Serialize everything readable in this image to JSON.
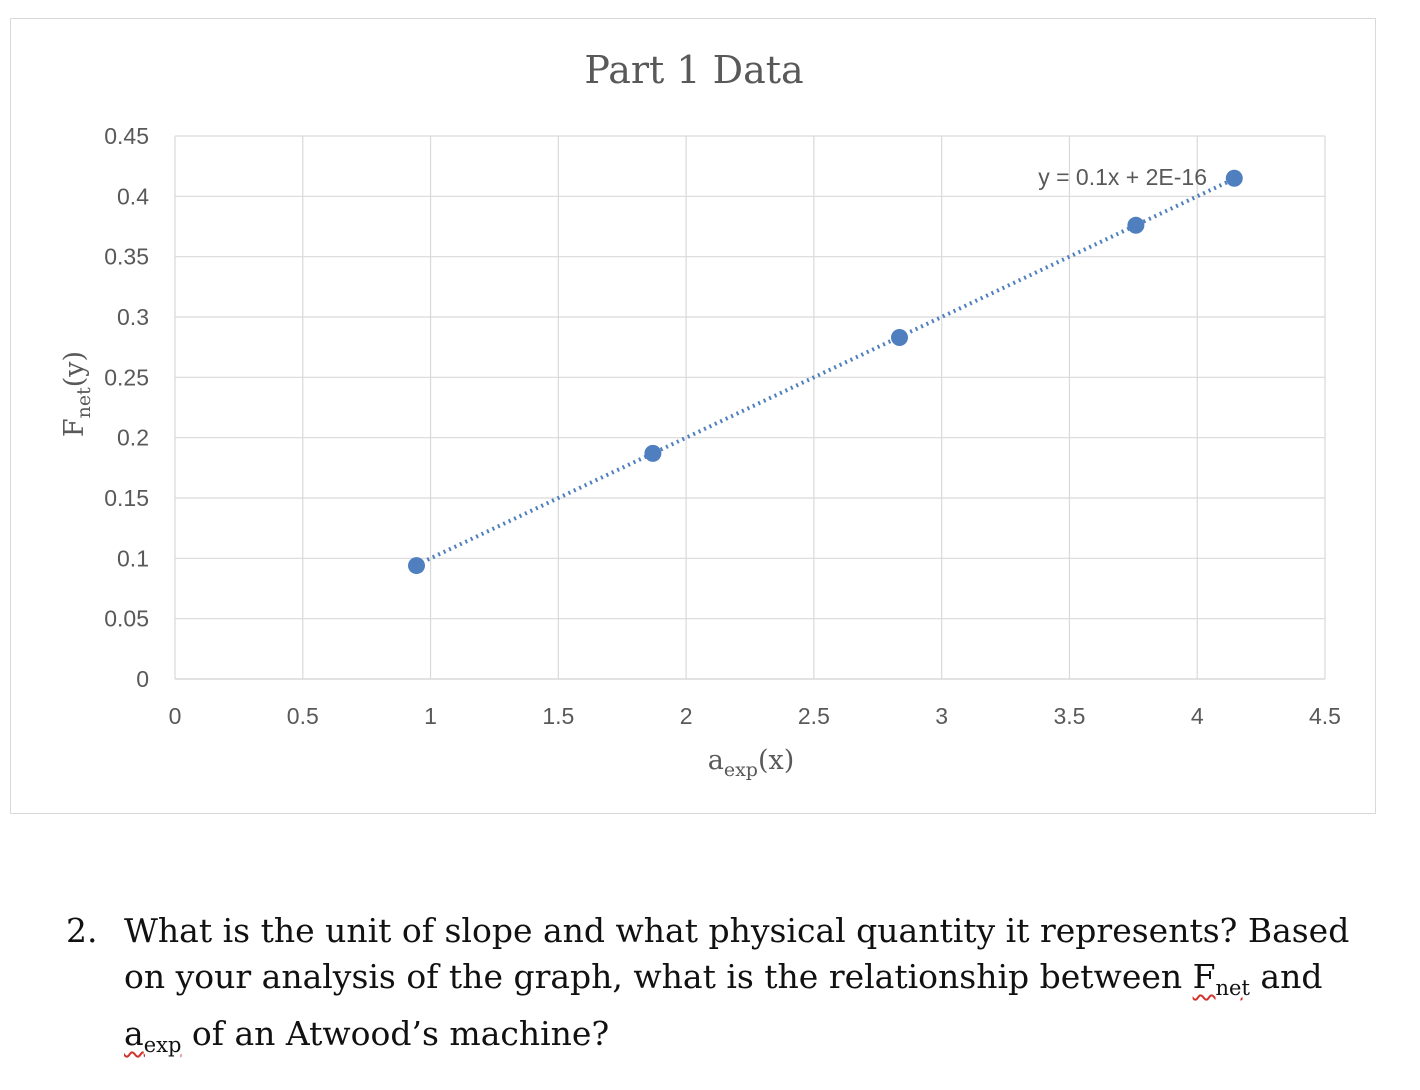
{
  "chart_data": {
    "type": "scatter",
    "title": "Part 1 Data",
    "xlabel": {
      "main": "a",
      "sub": "exp",
      "tail": "(x)"
    },
    "ylabel": {
      "main": "F",
      "sub": "net",
      "tail": "(y)"
    },
    "xlim": [
      0,
      4.5
    ],
    "ylim": [
      0,
      0.45
    ],
    "x_ticks": [
      "0",
      "0.5",
      "1",
      "1.5",
      "2",
      "2.5",
      "3",
      "3.5",
      "4",
      "4.5"
    ],
    "y_ticks": [
      "0",
      "0.05",
      "0.1",
      "0.15",
      "0.2",
      "0.25",
      "0.3",
      "0.35",
      "0.4",
      "0.45"
    ],
    "grid": true,
    "series": [
      {
        "x": [
          0.945,
          1.87,
          2.835,
          3.76,
          4.145
        ],
        "y": [
          0.094,
          0.187,
          0.283,
          0.376,
          0.415
        ]
      }
    ],
    "trendline": {
      "style": "dotted",
      "equation": "y = 0.1x + 2E-16",
      "x_range": [
        0.945,
        4.145
      ]
    },
    "colors": {
      "marker": "#4f7fbf",
      "grid": "#d9d9d9",
      "text": "#595959"
    }
  },
  "question": {
    "number": "2.",
    "text_1": "What is the unit of slope and what physical quantity it represents? Based on your analysis of the graph, what is the relationship between ",
    "term1_main": "F",
    "term1_sub": "net",
    "text_2": " and  ",
    "term2_main": "a",
    "term2_sub": "exp",
    "text_3": " of an Atwood’s machine?"
  }
}
